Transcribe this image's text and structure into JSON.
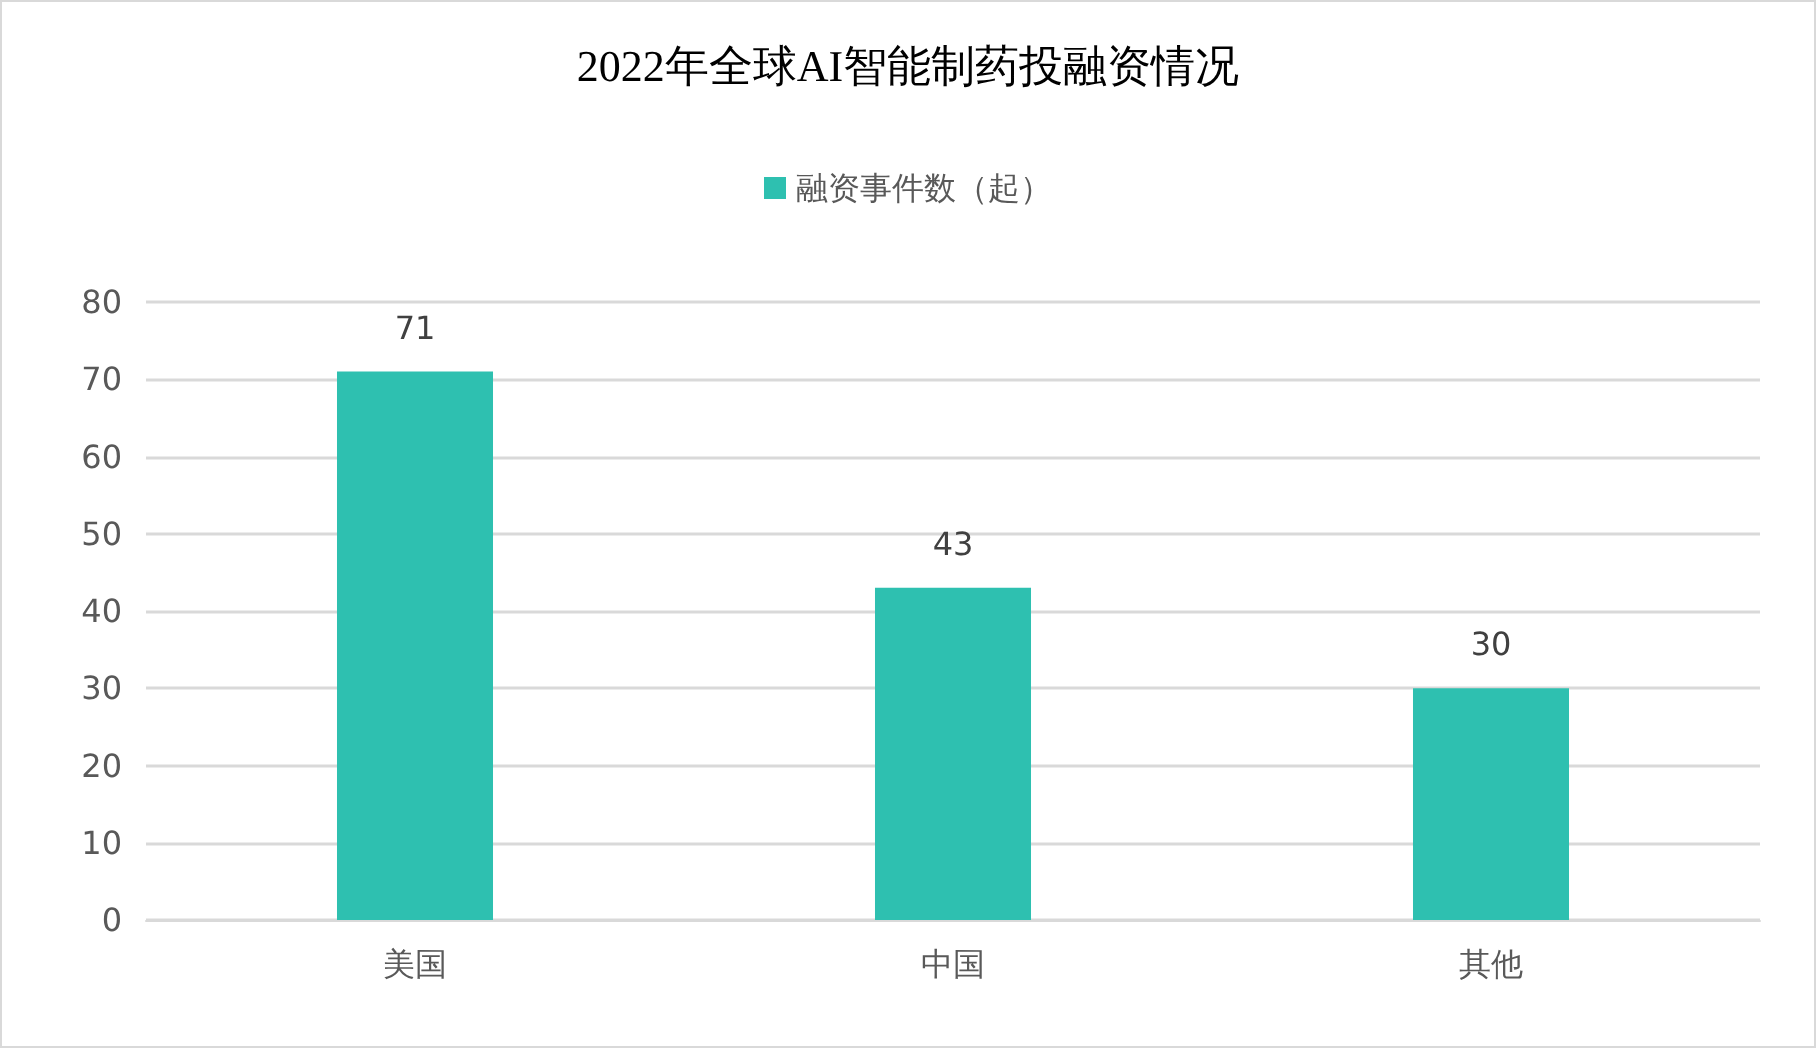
{
  "chart_data": {
    "type": "bar",
    "title": "2022年全球AI智能制药投融资情况",
    "categories": [
      "美国",
      "中国",
      "其他"
    ],
    "series": [
      {
        "name": "融资事件数（起）",
        "color": "#2ec0b0",
        "values": [
          71,
          43,
          30
        ]
      }
    ],
    "ylim": [
      0,
      80
    ],
    "yticks": [
      0,
      10,
      20,
      30,
      40,
      50,
      60,
      70,
      80
    ],
    "grid": "y",
    "legend": "top",
    "data_labels": true
  }
}
